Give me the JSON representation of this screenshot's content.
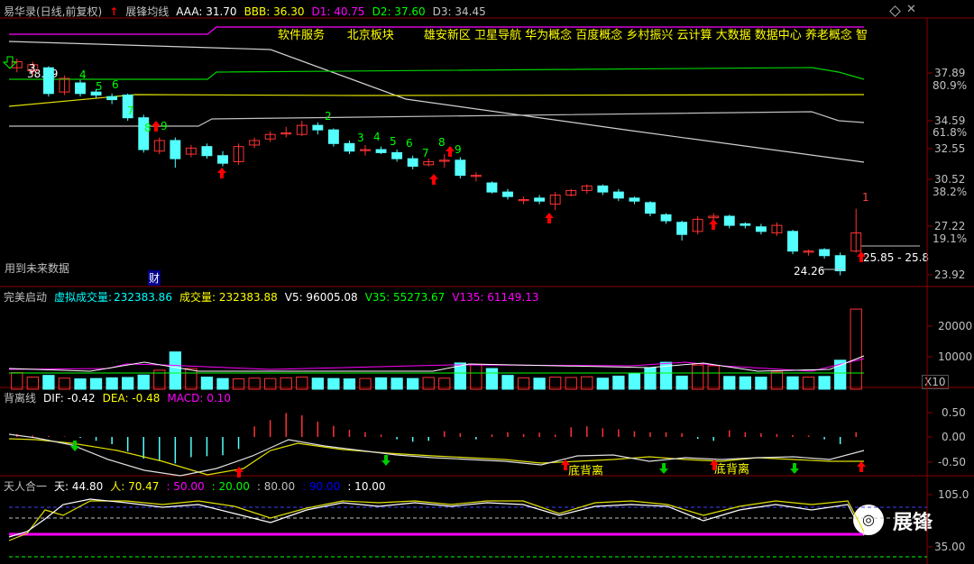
{
  "header": {
    "title": "易华录(日线,前复权)",
    "indicator": "展锋均线",
    "aaa": "AAA: 31.70",
    "bbb": "BBB: 36.30",
    "d1": "D1: 40.75",
    "d2": "D2: 37.60",
    "d3": "D3: 34.45"
  },
  "concepts": "软件服务      北京板块        雄安新区 卫星导航 华为概念 百度概念 乡村振兴 云计算 大数据 数据中心 养老概念 智",
  "main": {
    "future_text": "用到未来数据",
    "cai": "财",
    "price_tag": "38.09",
    "range_label": "25.85 - 25.8",
    "low_label": "24.26",
    "red_one": "1",
    "y_ticks": [
      "37.89",
      "80.9%",
      "34.59",
      "61.8%",
      "32.55",
      "30.52",
      "38.2%",
      "27.22",
      "19.1%",
      "23.92"
    ],
    "seq_labels": [
      {
        "t": "3",
        "c": "#ffffff"
      },
      {
        "t": "4",
        "c": "#00ff00"
      },
      {
        "t": "5",
        "c": "#00ff00"
      },
      {
        "t": "6",
        "c": "#00ff00"
      },
      {
        "t": "7",
        "c": "#00ff00"
      },
      {
        "t": "8",
        "c": "#00ff00"
      },
      {
        "t": "9",
        "c": "#00ff00"
      },
      {
        "t": "2",
        "c": "#00ff00"
      },
      {
        "t": "3",
        "c": "#00ff00"
      },
      {
        "t": "4",
        "c": "#00ff00"
      },
      {
        "t": "5",
        "c": "#00ff00"
      },
      {
        "t": "6",
        "c": "#00ff00"
      },
      {
        "t": "7",
        "c": "#00ff00"
      },
      {
        "t": "8",
        "c": "#00ff00"
      },
      {
        "t": "9",
        "c": "#00ff00"
      }
    ]
  },
  "vol": {
    "name": "完美启动",
    "virtual_label": "虚拟成交量:",
    "virtual_val": "232383.86",
    "vol_label": "成交量: 232383.88",
    "v5": "V5: 96005.08",
    "v35": "V35: 55273.67",
    "v135": "V135: 61149.13",
    "y_ticks": [
      "20000",
      "10000"
    ],
    "x10": "X10"
  },
  "macd": {
    "name": "背离线",
    "dif": "DIF: -0.42",
    "dea": "DEA: -0.48",
    "macd": "MACD: 0.10",
    "y_ticks": [
      "0.50",
      "0.00",
      "-0.50"
    ],
    "div1": "底背离",
    "div2": "底背离"
  },
  "tian": {
    "name": "天人合一",
    "tian": "天: 44.80",
    "ren": "人: 70.47",
    "l50": ": 50.00",
    "l20": ": 20.00",
    "l80": ": 80.00",
    "l90": ": 90.00",
    "l10": ": 10.00",
    "y_ticks": [
      "105.0",
      "35.00"
    ],
    "watermark": "展锋"
  },
  "chart_data": {
    "type": "candlestick",
    "candles": [
      {
        "o": 38.0,
        "c": 38.4,
        "h": 38.6,
        "l": 37.7
      },
      {
        "o": 37.8,
        "c": 38.2,
        "h": 38.4,
        "l": 37.5
      },
      {
        "o": 38.0,
        "c": 36.3,
        "h": 38.1,
        "l": 36.1
      },
      {
        "o": 36.4,
        "c": 37.3,
        "h": 37.5,
        "l": 36.2
      },
      {
        "o": 37.0,
        "c": 36.3,
        "h": 37.2,
        "l": 36.1
      },
      {
        "o": 36.4,
        "c": 36.2,
        "h": 36.6,
        "l": 36.0
      },
      {
        "o": 36.1,
        "c": 35.9,
        "h": 36.3,
        "l": 35.6
      },
      {
        "o": 36.2,
        "c": 34.7,
        "h": 36.3,
        "l": 34.5
      },
      {
        "o": 34.7,
        "c": 32.6,
        "h": 34.9,
        "l": 32.4
      },
      {
        "o": 32.5,
        "c": 33.2,
        "h": 33.4,
        "l": 32.3
      },
      {
        "o": 33.2,
        "c": 32.0,
        "h": 33.4,
        "l": 31.4
      },
      {
        "o": 32.3,
        "c": 32.7,
        "h": 32.9,
        "l": 32.1
      },
      {
        "o": 32.8,
        "c": 32.2,
        "h": 33.0,
        "l": 32.0
      },
      {
        "o": 32.2,
        "c": 31.7,
        "h": 32.5,
        "l": 31.5
      },
      {
        "o": 31.8,
        "c": 32.8,
        "h": 33.0,
        "l": 31.6
      },
      {
        "o": 32.9,
        "c": 33.2,
        "h": 33.4,
        "l": 32.7
      },
      {
        "o": 33.3,
        "c": 33.6,
        "h": 33.8,
        "l": 33.1
      },
      {
        "o": 33.7,
        "c": 33.7,
        "h": 34.1,
        "l": 33.4
      },
      {
        "o": 33.6,
        "c": 34.2,
        "h": 34.5,
        "l": 33.5
      },
      {
        "o": 34.2,
        "c": 33.9,
        "h": 34.4,
        "l": 33.6
      },
      {
        "o": 33.9,
        "c": 33.0,
        "h": 34.0,
        "l": 32.8
      },
      {
        "o": 33.0,
        "c": 32.5,
        "h": 33.2,
        "l": 32.3
      },
      {
        "o": 32.6,
        "c": 32.6,
        "h": 32.9,
        "l": 32.2
      },
      {
        "o": 32.6,
        "c": 32.4,
        "h": 32.8,
        "l": 32.3
      },
      {
        "o": 32.4,
        "c": 32.0,
        "h": 32.6,
        "l": 31.8
      },
      {
        "o": 32.0,
        "c": 31.5,
        "h": 32.2,
        "l": 31.3
      },
      {
        "o": 31.6,
        "c": 31.8,
        "h": 32.0,
        "l": 31.5
      },
      {
        "o": 31.9,
        "c": 31.9,
        "h": 32.3,
        "l": 31.4
      },
      {
        "o": 31.9,
        "c": 30.9,
        "h": 32.1,
        "l": 30.7
      },
      {
        "o": 30.9,
        "c": 30.9,
        "h": 31.1,
        "l": 30.5
      },
      {
        "o": 30.4,
        "c": 29.8,
        "h": 30.5,
        "l": 29.7
      },
      {
        "o": 29.8,
        "c": 29.5,
        "h": 30.0,
        "l": 29.3
      },
      {
        "o": 29.3,
        "c": 29.3,
        "h": 29.5,
        "l": 29.0
      },
      {
        "o": 29.4,
        "c": 29.2,
        "h": 29.6,
        "l": 29.0
      },
      {
        "o": 29.0,
        "c": 29.6,
        "h": 29.8,
        "l": 28.6
      },
      {
        "o": 29.6,
        "c": 29.9,
        "h": 30.0,
        "l": 29.5
      },
      {
        "o": 29.9,
        "c": 30.2,
        "h": 30.3,
        "l": 29.7
      },
      {
        "o": 30.2,
        "c": 29.8,
        "h": 30.3,
        "l": 29.6
      },
      {
        "o": 29.8,
        "c": 29.4,
        "h": 30.0,
        "l": 29.2
      },
      {
        "o": 29.4,
        "c": 29.2,
        "h": 29.5,
        "l": 29.0
      },
      {
        "o": 29.1,
        "c": 28.4,
        "h": 29.2,
        "l": 28.2
      },
      {
        "o": 28.3,
        "c": 27.9,
        "h": 28.4,
        "l": 27.7
      },
      {
        "o": 27.8,
        "c": 27.0,
        "h": 27.9,
        "l": 26.6
      },
      {
        "o": 27.2,
        "c": 28.0,
        "h": 28.2,
        "l": 27.0
      },
      {
        "o": 28.1,
        "c": 28.2,
        "h": 28.4,
        "l": 27.8
      },
      {
        "o": 28.2,
        "c": 27.6,
        "h": 28.3,
        "l": 27.4
      },
      {
        "o": 27.7,
        "c": 27.6,
        "h": 27.8,
        "l": 27.4
      },
      {
        "o": 27.5,
        "c": 27.2,
        "h": 27.7,
        "l": 27.0
      },
      {
        "o": 27.1,
        "c": 27.6,
        "h": 27.8,
        "l": 26.9
      },
      {
        "o": 27.2,
        "c": 25.9,
        "h": 27.3,
        "l": 25.7
      },
      {
        "o": 25.9,
        "c": 25.9,
        "h": 26.0,
        "l": 25.6
      },
      {
        "o": 26.0,
        "c": 25.6,
        "h": 26.1,
        "l": 25.4
      },
      {
        "o": 25.6,
        "c": 24.6,
        "h": 25.8,
        "l": 24.3
      },
      {
        "o": 25.9,
        "c": 27.1,
        "h": 28.7,
        "l": 25.8
      }
    ],
    "volume": [
      4.8,
      3.5,
      4.0,
      3.2,
      3.0,
      3.1,
      3.3,
      3.4,
      4.1,
      5.5,
      10.8,
      6.0,
      3.5,
      3.1,
      3.0,
      3.2,
      3.1,
      3.3,
      3.5,
      3.2,
      3.1,
      3.0,
      3.1,
      3.3,
      3.2,
      3.1,
      3.4,
      3.2,
      7.6,
      7.2,
      6.0,
      4.0,
      3.3,
      3.2,
      3.5,
      3.4,
      3.6,
      3.2,
      3.8,
      4.5,
      6.2,
      7.8,
      3.8,
      7.0,
      6.8,
      3.7,
      3.6,
      3.5,
      5.0,
      3.6,
      3.5,
      3.7,
      8.4,
      23.2
    ],
    "series": [
      {
        "name": "AAA",
        "values": [
          31.7
        ]
      },
      {
        "name": "BBB",
        "values": [
          36.3
        ]
      },
      {
        "name": "D1",
        "values": [
          40.75
        ]
      },
      {
        "name": "D2",
        "values": [
          37.6
        ]
      },
      {
        "name": "D3",
        "values": [
          34.45
        ]
      }
    ],
    "macd_bars": [
      0.06,
      0.03,
      0.02,
      0.01,
      -0.02,
      -0.08,
      -0.15,
      -0.3,
      -0.45,
      -0.5,
      -0.55,
      -0.42,
      -0.4,
      -0.38,
      -0.25,
      0.22,
      0.35,
      0.5,
      0.45,
      0.32,
      0.23,
      0.15,
      0.1,
      0.05,
      -0.05,
      -0.1,
      -0.08,
      0.12,
      0.08,
      -0.05,
      0.05,
      0.1,
      0.06,
      0.09,
      0.05,
      0.2,
      0.22,
      0.18,
      0.16,
      0.12,
      0.1,
      0.1,
      0.08,
      -0.04,
      -0.08,
      0.14,
      0.1,
      0.08,
      0.06,
      0.04,
      0.03,
      -0.05,
      -0.15,
      0.1
    ],
    "ylim_main": [
      23.92,
      39.5
    ],
    "ylim_vol": [
      0,
      24000
    ],
    "ylim_macd": [
      -0.75,
      0.75
    ],
    "ylim_tian": [
      -30,
      120
    ]
  }
}
